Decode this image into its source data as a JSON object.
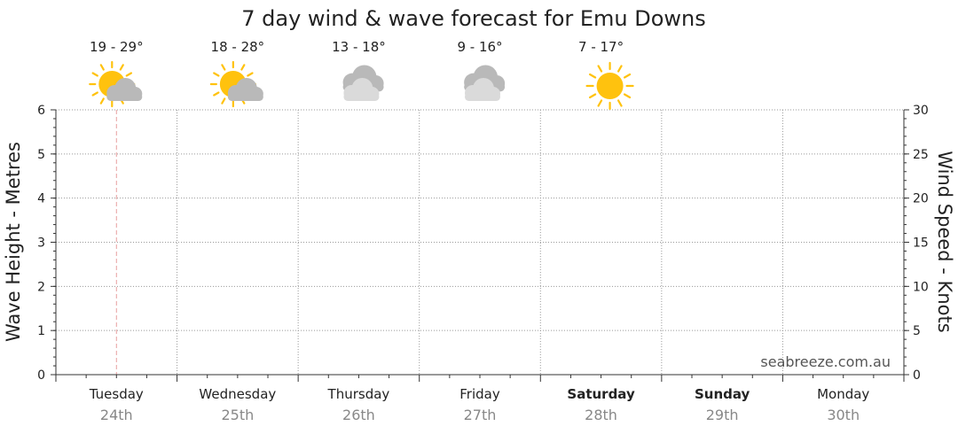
{
  "chart_data": {
    "type": "line",
    "title": "7 day wind & wave forecast for Emu Downs",
    "ylabel_left": "Wave Height - Metres",
    "ylabel_right": "Wind Speed - Knots",
    "ylim_left": [
      0,
      6
    ],
    "ylim_right": [
      0,
      30
    ],
    "yticks_left": [
      "0",
      "1",
      "2",
      "3",
      "4",
      "5",
      "6"
    ],
    "yticks_right": [
      "0",
      "5",
      "10",
      "15",
      "20",
      "25",
      "30"
    ],
    "grid": true,
    "now_marker_day_fraction": 0.5,
    "watermark": "seabreeze.com.au",
    "days": [
      {
        "day": "Tuesday",
        "date": "24th",
        "bold": false,
        "temp": "19 - 29°",
        "icon": "partly-cloudy-icon"
      },
      {
        "day": "Wednesday",
        "date": "25th",
        "bold": false,
        "temp": "18 - 28°",
        "icon": "partly-cloudy-icon"
      },
      {
        "day": "Thursday",
        "date": "26th",
        "bold": false,
        "temp": "13 - 18°",
        "icon": "cloudy-icon"
      },
      {
        "day": "Friday",
        "date": "27th",
        "bold": false,
        "temp": "9 - 16°",
        "icon": "cloudy-icon"
      },
      {
        "day": "Saturday",
        "date": "28th",
        "bold": true,
        "temp": "7 - 17°",
        "icon": "sunny-icon"
      },
      {
        "day": "Sunday",
        "date": "29th",
        "bold": true,
        "temp": "",
        "icon": ""
      },
      {
        "day": "Monday",
        "date": "30th",
        "bold": false,
        "temp": "",
        "icon": ""
      }
    ],
    "series": []
  },
  "colors": {
    "sun": "#FFC20E",
    "sun_ray": "#FFC20E",
    "cloud_dark": "#B9B9B9",
    "cloud_light": "#DADADA",
    "grid": "#9a9a9a",
    "now_marker": "#e8a0a0"
  }
}
